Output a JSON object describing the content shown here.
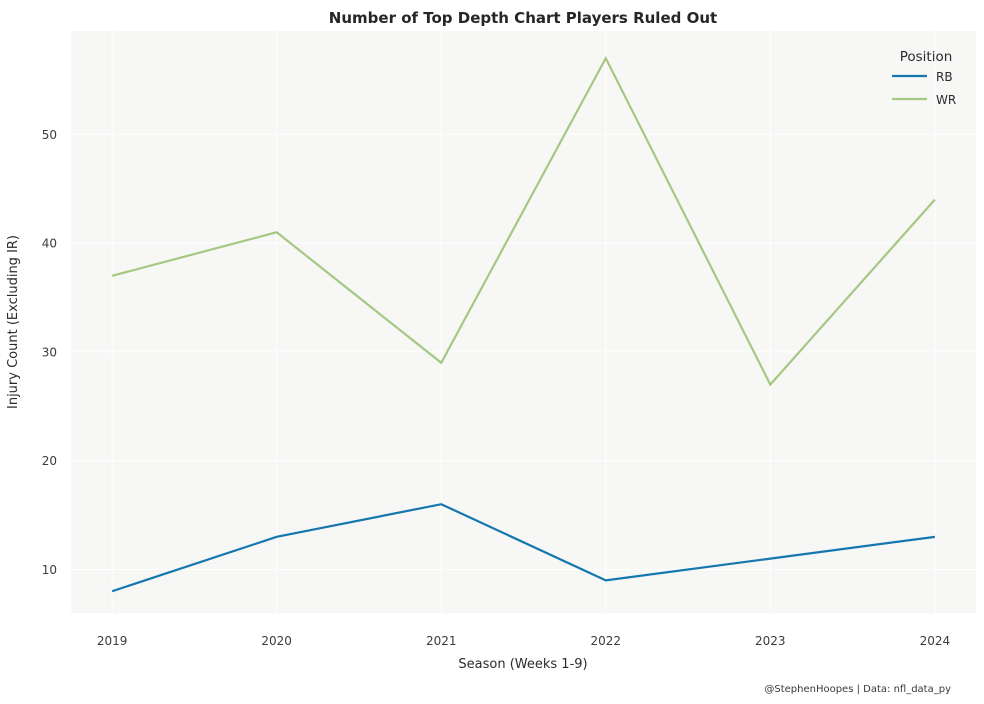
{
  "title": "Number of Top Depth Chart Players Ruled Out",
  "attribution": "@StephenHoopes | Data: nfl_data_py",
  "legend": {
    "title": "Position",
    "entries": [
      {
        "label": "RB",
        "color": "#1477ae"
      },
      {
        "label": "WR",
        "color": "#a5c882"
      }
    ]
  },
  "chart_data": {
    "type": "line",
    "title": "Number of Top Depth Chart Players Ruled Out",
    "xlabel": "Season (Weeks 1-9)",
    "ylabel": "Injury Count (Excluding IR)",
    "x": [
      2019,
      2020,
      2021,
      2022,
      2023,
      2024
    ],
    "series": [
      {
        "name": "RB",
        "color": "#1477ae",
        "values": [
          8,
          13,
          16,
          9,
          11,
          13
        ]
      },
      {
        "name": "WR",
        "color": "#a5c882",
        "values": [
          37,
          41,
          29,
          57,
          27,
          44
        ]
      }
    ],
    "xlim": [
      2018.75,
      2024.25
    ],
    "ylim": [
      6,
      59.5
    ],
    "yticks": [
      10,
      20,
      30,
      40,
      50
    ],
    "grid": true,
    "grid_color": "#ffffff",
    "plot_background": "#f7f7f6",
    "legend_position": "upper right"
  }
}
